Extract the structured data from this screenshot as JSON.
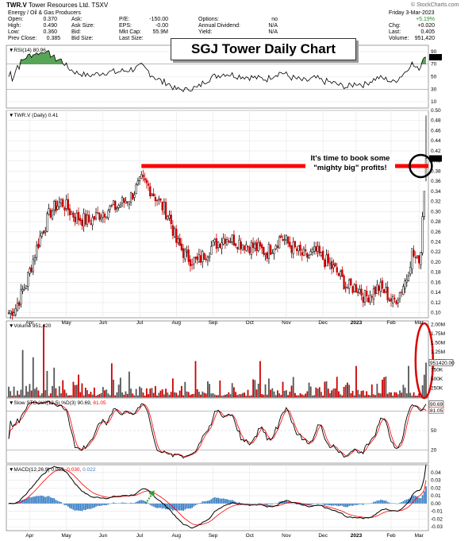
{
  "header": {
    "symbol": "TWR.V",
    "company": "Tower Resources Ltd.",
    "exchange": "TSXV",
    "sector": "Energy / Oil & Gas Producers",
    "date": "Friday   3-Mar-2023",
    "watermark": "© StockCharts.com",
    "fields_col1": [
      {
        "label": "Open:",
        "value": "0.370"
      },
      {
        "label": "High:",
        "value": "0.490"
      },
      {
        "label": "Low:",
        "value": "0.360"
      },
      {
        "label": "Prev Close:",
        "value": "0.385"
      }
    ],
    "fields_col2": [
      {
        "label": "Ask:",
        "value": ""
      },
      {
        "label": "Ask Size:",
        "value": ""
      },
      {
        "label": "Bid:",
        "value": ""
      },
      {
        "label": "Bid Size:",
        "value": ""
      }
    ],
    "fields_col3": [
      {
        "label": "P/E:",
        "value": "-150.00"
      },
      {
        "label": "EPS:",
        "value": "-0.00"
      },
      {
        "label": "Mkt Cap:",
        "value": "55.9M"
      },
      {
        "label": "Last Size:",
        "value": ""
      }
    ],
    "fields_col4": [
      {
        "label": "Options:",
        "value": "no"
      },
      {
        "label": "Annual Dividend:",
        "value": "N/A"
      },
      {
        "label": "Yield:",
        "value": "N/A"
      }
    ],
    "fields_col5": [
      {
        "label": "",
        "value": "+5.19%"
      },
      {
        "label": "Chg:",
        "value": "+0.020"
      },
      {
        "label": "Last:",
        "value": "0.405"
      },
      {
        "label": "Volume:",
        "value": "951,420"
      }
    ]
  },
  "title_box": "SGJ Tower Daily Chart",
  "annotation": "It's time to book some\n\"mighty big\" profits!",
  "colors": {
    "up": "#000000",
    "down": "#cc0000",
    "resistance": "#ff0000",
    "ellipse": "#dd0000",
    "stoch_k": "#000000",
    "stoch_d": "#ff0000",
    "macd_hist": "#3a7fc4",
    "rsi_fill": "#2d8f2d"
  },
  "chart_data": [
    {
      "type": "line",
      "panel": "RSI",
      "label": "RSI(14) 80.96",
      "ylim": [
        0,
        100
      ],
      "yticks": [
        90,
        70,
        50,
        30,
        10
      ],
      "current_value": 80.96,
      "months": [
        "Apr",
        "May",
        "Jun",
        "Jul",
        "Aug",
        "Sep",
        "Oct",
        "Nov",
        "Dec",
        "2023",
        "Feb",
        "Mar"
      ]
    },
    {
      "type": "candlestick",
      "panel": "Price",
      "label": "TWR.V (Daily) 0.41",
      "ylim": [
        0.09,
        0.5
      ],
      "yticks": [
        0.5,
        0.48,
        0.46,
        0.44,
        0.42,
        0.4,
        0.38,
        0.36,
        0.34,
        0.32,
        0.3,
        0.28,
        0.26,
        0.24,
        0.22,
        0.2,
        0.18,
        0.16,
        0.14,
        0.12,
        0.1
      ],
      "last_price_label": "0.41",
      "resistance": 0.39,
      "current_close": 0.405,
      "months": [
        "Apr",
        "May",
        "Jun",
        "Jul",
        "Aug",
        "Sep",
        "Oct",
        "Nov",
        "Dec",
        "2023",
        "Feb",
        "Mar"
      ]
    },
    {
      "type": "bar",
      "panel": "Volume",
      "label": "Volume 951,420",
      "yticks": [
        "2.00M",
        "1.75M",
        "1.50M",
        "1.25M",
        "1.00M",
        "750K",
        "500K",
        "250K"
      ],
      "current_label": "951420.00",
      "current_value": 951420
    },
    {
      "type": "line",
      "panel": "Slow STO",
      "label_k": "Slow STO %K(12,5) %D(3) 90.69,",
      "label_d": "81.05",
      "ylim": [
        0,
        100
      ],
      "yticks": [
        80,
        50,
        20
      ],
      "current_labels": [
        "90.69",
        "81.05"
      ]
    },
    {
      "type": "line",
      "panel": "MACD",
      "label_a": "MACD(12,26,9) 0.052,",
      "label_b": "0.030,",
      "label_c": "0.022",
      "yticks": [
        "0.04",
        "0.03",
        "0.02",
        "0.01",
        "0.00",
        "-0.01",
        "-0.02",
        "-0.03"
      ],
      "months": [
        "Apr",
        "May",
        "Jun",
        "Jul",
        "Aug",
        "Sep",
        "Oct",
        "Nov",
        "Dec",
        "2023",
        "Feb",
        "Mar"
      ]
    }
  ]
}
